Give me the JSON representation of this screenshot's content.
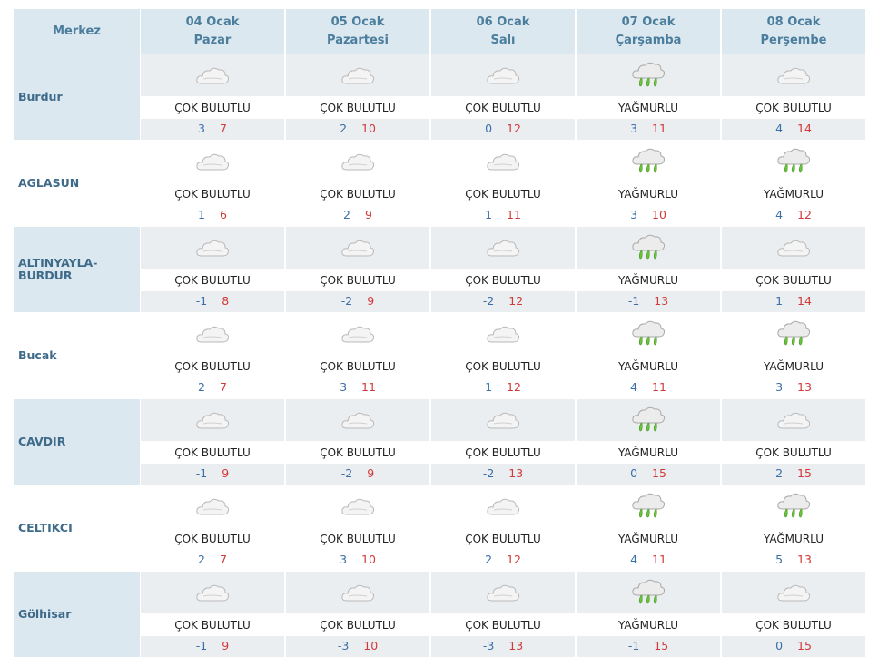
{
  "table": {
    "header": {
      "corner": "Merkez",
      "days": [
        {
          "date": "04 Ocak",
          "day": "Pazar"
        },
        {
          "date": "05 Ocak",
          "day": "Pazartesi"
        },
        {
          "date": "06 Ocak",
          "day": "Salı"
        },
        {
          "date": "07 Ocak",
          "day": "Çarşamba"
        },
        {
          "date": "08 Ocak",
          "day": "Perşembe"
        }
      ]
    },
    "rows": [
      {
        "city": "Burdur",
        "cells": [
          {
            "condition": "ÇOK BULUTLU",
            "low": 3,
            "high": 7
          },
          {
            "condition": "ÇOK BULUTLU",
            "low": 2,
            "high": 10
          },
          {
            "condition": "ÇOK BULUTLU",
            "low": 0,
            "high": 12
          },
          {
            "condition": "YAĞMURLU",
            "low": 3,
            "high": 11
          },
          {
            "condition": "ÇOK BULUTLU",
            "low": 4,
            "high": 14
          }
        ]
      },
      {
        "city": "AGLASUN",
        "cells": [
          {
            "condition": "ÇOK BULUTLU",
            "low": 1,
            "high": 6
          },
          {
            "condition": "ÇOK BULUTLU",
            "low": 2,
            "high": 9
          },
          {
            "condition": "ÇOK BULUTLU",
            "low": 1,
            "high": 11
          },
          {
            "condition": "YAĞMURLU",
            "low": 3,
            "high": 10
          },
          {
            "condition": "YAĞMURLU",
            "low": 4,
            "high": 12
          }
        ]
      },
      {
        "city": "ALTINYAYLA-BURDUR",
        "cells": [
          {
            "condition": "ÇOK BULUTLU",
            "low": -1,
            "high": 8
          },
          {
            "condition": "ÇOK BULUTLU",
            "low": -2,
            "high": 9
          },
          {
            "condition": "ÇOK BULUTLU",
            "low": -2,
            "high": 12
          },
          {
            "condition": "YAĞMURLU",
            "low": -1,
            "high": 13
          },
          {
            "condition": "ÇOK BULUTLU",
            "low": 1,
            "high": 14
          }
        ]
      },
      {
        "city": "Bucak",
        "cells": [
          {
            "condition": "ÇOK BULUTLU",
            "low": 2,
            "high": 7
          },
          {
            "condition": "ÇOK BULUTLU",
            "low": 3,
            "high": 11
          },
          {
            "condition": "ÇOK BULUTLU",
            "low": 1,
            "high": 12
          },
          {
            "condition": "YAĞMURLU",
            "low": 4,
            "high": 11
          },
          {
            "condition": "YAĞMURLU",
            "low": 3,
            "high": 13
          }
        ]
      },
      {
        "city": "CAVDIR",
        "cells": [
          {
            "condition": "ÇOK BULUTLU",
            "low": -1,
            "high": 9
          },
          {
            "condition": "ÇOK BULUTLU",
            "low": -2,
            "high": 9
          },
          {
            "condition": "ÇOK BULUTLU",
            "low": -2,
            "high": 13
          },
          {
            "condition": "YAĞMURLU",
            "low": 0,
            "high": 15
          },
          {
            "condition": "ÇOK BULUTLU",
            "low": 2,
            "high": 15
          }
        ]
      },
      {
        "city": "CELTIKCI",
        "cells": [
          {
            "condition": "ÇOK BULUTLU",
            "low": 2,
            "high": 7
          },
          {
            "condition": "ÇOK BULUTLU",
            "low": 3,
            "high": 10
          },
          {
            "condition": "ÇOK BULUTLU",
            "low": 2,
            "high": 12
          },
          {
            "condition": "YAĞMURLU",
            "low": 4,
            "high": 11
          },
          {
            "condition": "YAĞMURLU",
            "low": 5,
            "high": 13
          }
        ]
      },
      {
        "city": "Gölhisar",
        "cells": [
          {
            "condition": "ÇOK BULUTLU",
            "low": -1,
            "high": 9
          },
          {
            "condition": "ÇOK BULUTLU",
            "low": -3,
            "high": 10
          },
          {
            "condition": "ÇOK BULUTLU",
            "low": -3,
            "high": 13
          },
          {
            "condition": "YAĞMURLU",
            "low": -1,
            "high": 15
          },
          {
            "condition": "ÇOK BULUTLU",
            "low": 0,
            "high": 15
          }
        ]
      }
    ]
  }
}
